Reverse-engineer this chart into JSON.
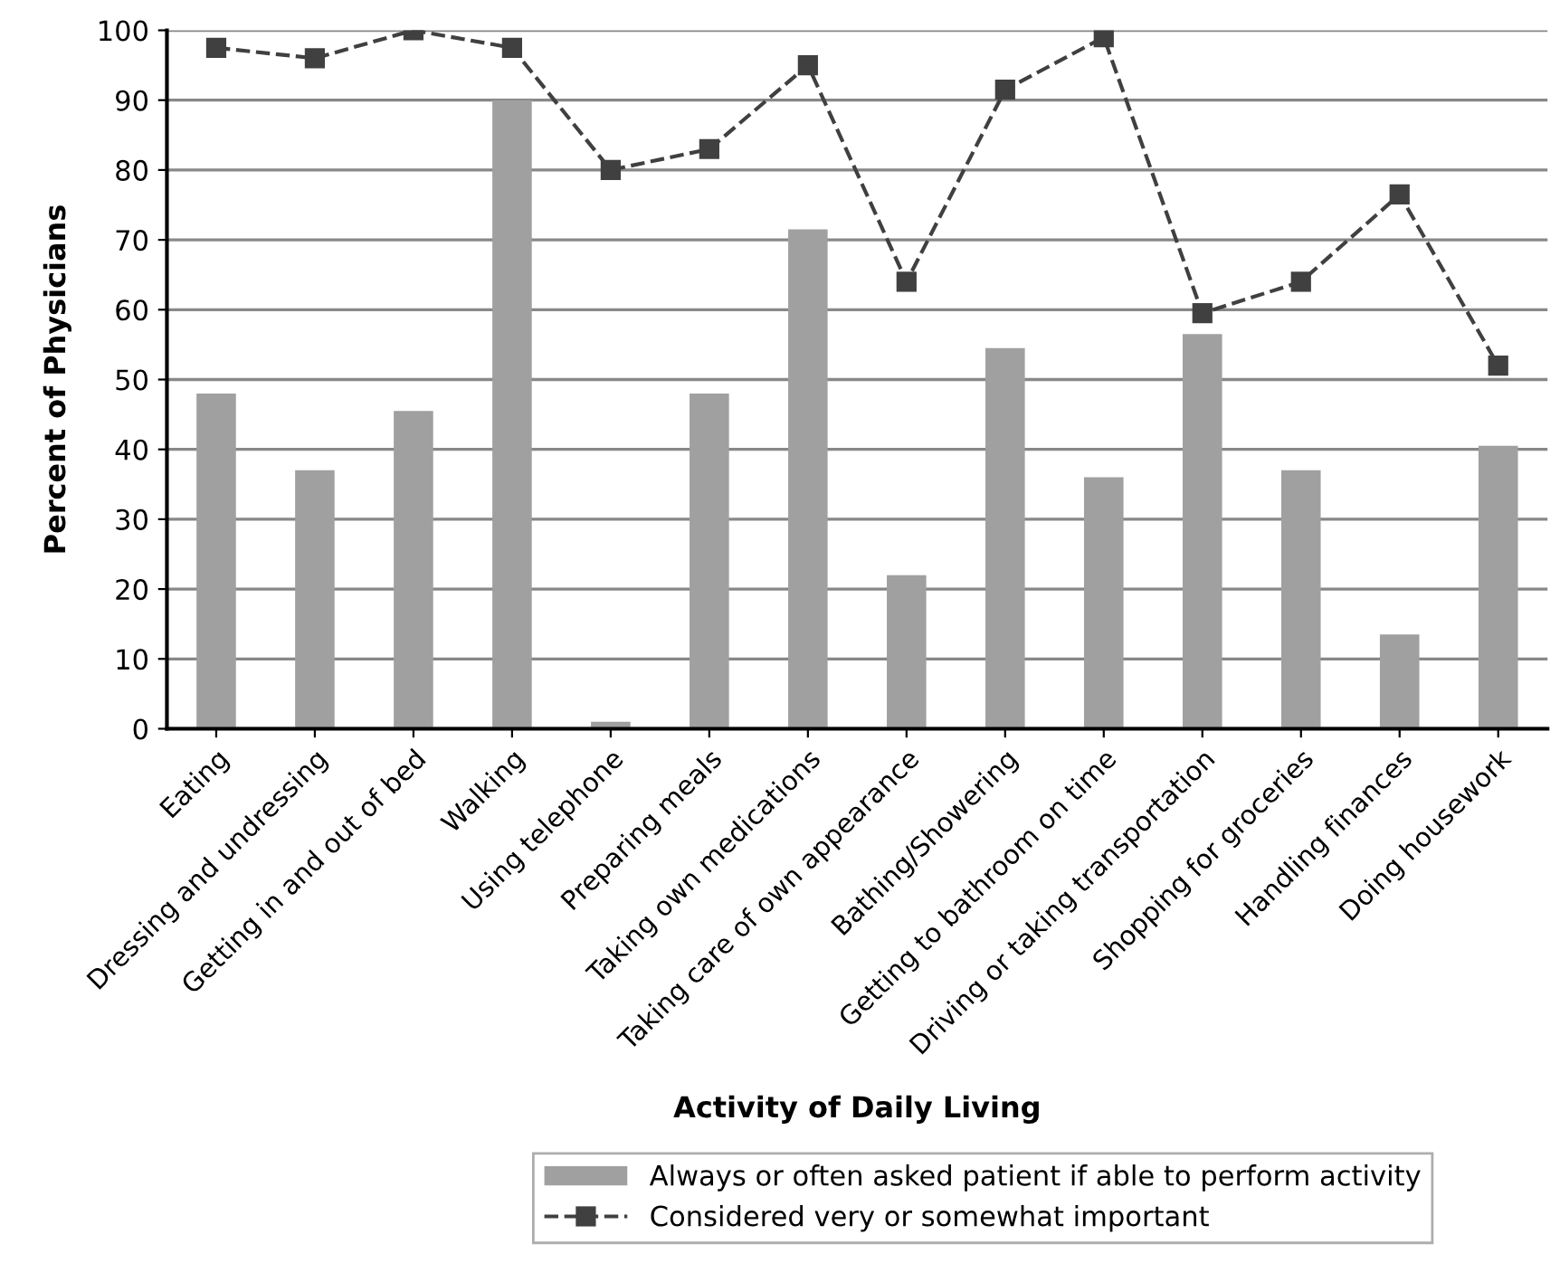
{
  "chart_data": {
    "type": "bar",
    "xlabel": "Activity of Daily Living",
    "ylabel": "Percent of Physicians",
    "categories": [
      "Eating",
      "Dressing and undressing",
      "Getting in and out of bed",
      "Walking",
      "Using telephone",
      "Preparing meals",
      "Taking own medications",
      "Taking care of own appearance",
      "Bathing/Showering",
      "Getting to bathroom on time",
      "Driving or taking transportation",
      "Shopping for groceries",
      "Handling finances",
      "Doing housework"
    ],
    "series": [
      {
        "name": "Always or often asked patient if able to perform activity",
        "color": "#a0a0a0",
        "values": [
          48,
          37,
          45.5,
          90,
          1,
          48,
          71.5,
          22,
          54.5,
          36,
          56.5,
          37,
          13.5,
          40.5
        ]
      },
      {
        "name": "Considered very or somewhat important",
        "type": "line",
        "color": "#404040",
        "marker": "square",
        "line_style": "dashed",
        "values": [
          97.5,
          96,
          100,
          97.5,
          80,
          83,
          95,
          64,
          91.5,
          99,
          59.5,
          64,
          76.5,
          52
        ]
      }
    ],
    "ylim": [
      0,
      100
    ],
    "yticks": [
      0,
      10,
      20,
      30,
      40,
      50,
      60,
      70,
      80,
      90,
      100
    ],
    "grid": "y",
    "legend": "bottom"
  }
}
